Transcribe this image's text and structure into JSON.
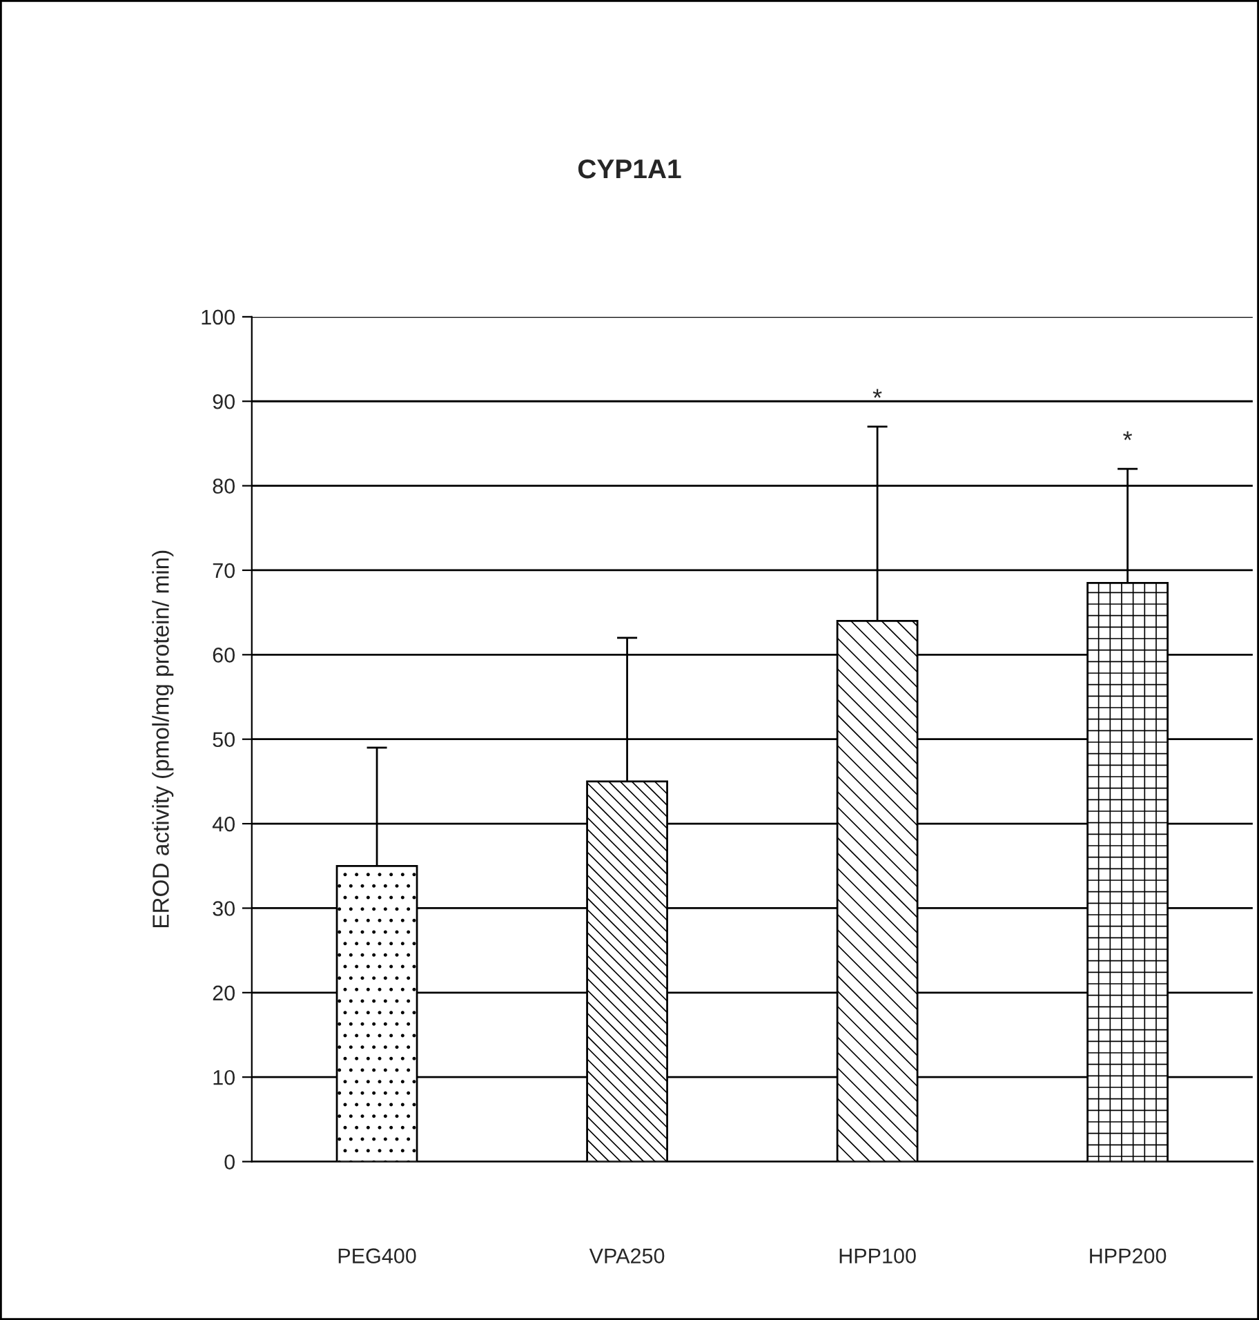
{
  "chart_data": {
    "type": "bar",
    "title": "CYP1A1",
    "ylabel": "EROD activity (pmol/mg protein/ min)",
    "categories": [
      "PEG400",
      "VPA250",
      "HPP100",
      "HPP200"
    ],
    "values": [
      35,
      45,
      64,
      68.5
    ],
    "errors": [
      [
        35,
        49
      ],
      [
        45,
        62
      ],
      [
        64,
        87
      ],
      [
        68.5,
        82
      ]
    ],
    "ylim": [
      0,
      100
    ],
    "yticks": [
      0,
      10,
      20,
      30,
      40,
      50,
      60,
      70,
      80,
      90,
      100
    ],
    "grid": "y",
    "legend": false,
    "annotations": [
      {
        "text": "*",
        "x": "HPP100",
        "y": 87
      },
      {
        "text": "*",
        "x": "HPP200",
        "y": 82
      }
    ]
  }
}
